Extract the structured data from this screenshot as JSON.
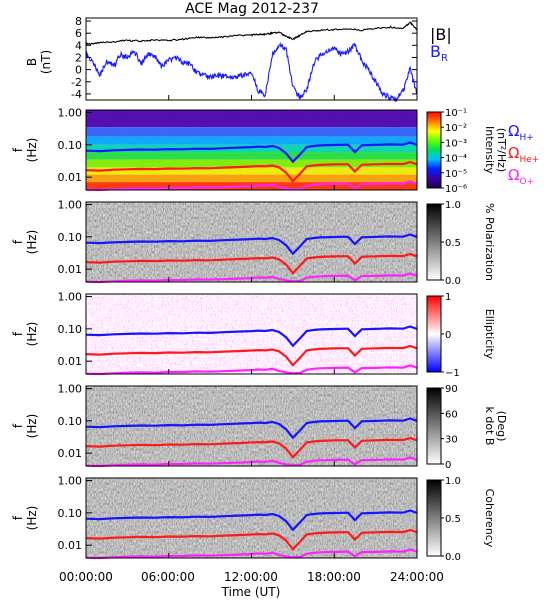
{
  "title": "ACE Mag 2012-237",
  "xlabel": "Time (UT)",
  "xticks": [
    "00:00:00",
    "06:00:00",
    "12:00:00",
    "18:00:00",
    "24:00:00"
  ],
  "colors": {
    "B": "#000000",
    "BR": "#1a1aff",
    "H": "#1515ff",
    "He": "#ff1a1a",
    "O": "#ff22ff"
  },
  "chart_data": [
    {
      "type": "line",
      "panel": "B",
      "ylabel": "B",
      "yunit": "(nT)",
      "ylim": [
        -5,
        8.5
      ],
      "yticks": [
        "8",
        "6",
        "4",
        "2",
        "0",
        "-2",
        "-4"
      ],
      "xlim_hours": [
        0,
        24
      ],
      "legend": [
        {
          "label": "|B|"
        },
        {
          "label": "B",
          "sub": "R"
        }
      ],
      "series": [
        {
          "name": "|B|",
          "color": "#000000",
          "x": [
            0,
            0.5,
            1,
            2,
            3,
            4,
            5,
            6,
            7,
            8,
            9,
            10,
            11,
            12,
            12.5,
            13,
            13.5,
            14,
            14.5,
            15,
            15.5,
            16,
            17,
            18,
            19,
            20,
            21,
            22,
            23,
            23.5,
            24
          ],
          "y": [
            4.3,
            4.2,
            4.5,
            4.6,
            4.8,
            4.7,
            4.9,
            4.8,
            5.0,
            5.3,
            5.2,
            5.4,
            5.6,
            5.7,
            5.8,
            5.8,
            6.0,
            6.1,
            5.5,
            5.0,
            5.6,
            6.3,
            6.5,
            6.6,
            6.7,
            6.5,
            6.8,
            7.0,
            6.8,
            7.8,
            6.5
          ]
        },
        {
          "name": "BR",
          "color": "#1a1aff",
          "x": [
            0,
            0.5,
            1,
            1.5,
            2,
            2.5,
            3,
            3.5,
            4,
            4.5,
            5,
            5.5,
            6,
            6.5,
            7,
            7.5,
            8,
            8.5,
            9,
            9.5,
            10,
            10.5,
            11,
            11.5,
            12,
            12.5,
            13,
            13.5,
            14,
            14.5,
            15,
            15.5,
            16,
            16.5,
            17,
            17.5,
            18,
            18.5,
            19,
            19.5,
            20,
            20.5,
            21,
            21.5,
            22,
            22.5,
            23,
            23.5,
            24
          ],
          "y": [
            2.8,
            1.0,
            -0.8,
            1.5,
            0.5,
            2.5,
            2.0,
            3.0,
            1.0,
            2.5,
            2.0,
            0.5,
            1.5,
            2.0,
            1.2,
            1.0,
            -0.5,
            -1.0,
            -1.2,
            -1.0,
            -1.1,
            -1.2,
            -1.0,
            -0.8,
            -0.5,
            -3.5,
            -4.2,
            2.5,
            4.0,
            3.5,
            -3.0,
            -4.5,
            -3.5,
            1.0,
            2.5,
            3.0,
            3.5,
            2.5,
            3.0,
            4.0,
            1.5,
            0.0,
            -2.0,
            -4.0,
            -4.5,
            -4.8,
            -3.5,
            0.0,
            -4.0
          ]
        }
      ]
    },
    {
      "type": "heatmap",
      "panel": "intensity",
      "ylabel": "f",
      "yunit": "(Hz)",
      "yscale": "log",
      "ylim": [
        0.004,
        1.2
      ],
      "yticks": [
        "1.00",
        "0.10",
        "0.01"
      ],
      "colorbar": {
        "label": "Intensity",
        "unit": "(nT²/Hz)",
        "ticks": [
          "10⁻¹",
          "10⁻²",
          "10⁻³",
          "10⁻⁴",
          "10⁻⁵",
          "10⁻⁶"
        ],
        "scale": "rainbow"
      },
      "legend": [
        {
          "label": "Ω",
          "sub": "H+",
          "color": "#1515ff"
        },
        {
          "label": "Ω",
          "sub": "He+",
          "color": "#ff1a1a"
        },
        {
          "label": "Ω",
          "sub": "O+",
          "color": "#ff22ff"
        }
      ]
    },
    {
      "type": "heatmap",
      "panel": "polarization",
      "ylabel": "f",
      "yunit": "(Hz)",
      "yscale": "log",
      "ylim": [
        0.004,
        1.2
      ],
      "yticks": [
        "1.00",
        "0.10",
        "0.01"
      ],
      "colorbar": {
        "label": "% Polarization",
        "ticks": [
          "1.0",
          "0.5",
          "0.0"
        ],
        "scale": "gray"
      }
    },
    {
      "type": "heatmap",
      "panel": "ellipticity",
      "ylabel": "f",
      "yunit": "(Hz)",
      "yscale": "log",
      "ylim": [
        0.004,
        1.2
      ],
      "yticks": [
        "1.00",
        "0.10",
        "0.01"
      ],
      "colorbar": {
        "label": "Ellipticity",
        "ticks": [
          "1",
          "0",
          "−1"
        ],
        "scale": "bwr"
      }
    },
    {
      "type": "heatmap",
      "panel": "kdotb",
      "ylabel": "f",
      "yunit": "(Hz)",
      "yscale": "log",
      "ylim": [
        0.004,
        1.2
      ],
      "yticks": [
        "1.00",
        "0.10",
        "0.01"
      ],
      "colorbar": {
        "label": "k dot B",
        "unit": "(Deg)",
        "ticks": [
          "90",
          "60",
          "30",
          "0"
        ],
        "scale": "gray"
      }
    },
    {
      "type": "heatmap",
      "panel": "coherency",
      "ylabel": "f",
      "yunit": "(Hz)",
      "yscale": "log",
      "ylim": [
        0.004,
        1.2
      ],
      "yticks": [
        "1.00",
        "0.10",
        "0.01"
      ],
      "colorbar": {
        "label": "Coherency",
        "ticks": [
          "1.0",
          "0.5",
          "0.0"
        ],
        "scale": "gray"
      }
    }
  ],
  "gyro_lines_hz": {
    "x_hours": [
      0,
      1,
      2,
      3,
      4,
      5,
      6,
      7,
      8,
      9,
      10,
      11,
      12,
      12.5,
      13,
      13.5,
      14,
      14.5,
      15,
      15.5,
      16,
      16.5,
      17,
      18,
      19,
      19.5,
      20,
      21,
      22,
      23,
      23.5,
      24
    ],
    "H": [
      0.066,
      0.064,
      0.068,
      0.07,
      0.072,
      0.071,
      0.074,
      0.073,
      0.076,
      0.075,
      0.079,
      0.082,
      0.085,
      0.088,
      0.086,
      0.092,
      0.08,
      0.055,
      0.03,
      0.05,
      0.086,
      0.092,
      0.096,
      0.099,
      0.101,
      0.06,
      0.097,
      0.1,
      0.103,
      0.101,
      0.118,
      0.1
    ],
    "He": [
      0.0165,
      0.016,
      0.017,
      0.0175,
      0.018,
      0.0178,
      0.0185,
      0.0183,
      0.019,
      0.0188,
      0.0198,
      0.0205,
      0.0213,
      0.022,
      0.0215,
      0.023,
      0.02,
      0.0138,
      0.0075,
      0.0125,
      0.0215,
      0.023,
      0.024,
      0.0248,
      0.0252,
      0.015,
      0.0242,
      0.025,
      0.0258,
      0.0253,
      0.0295,
      0.025
    ],
    "O": [
      0.0041,
      0.004,
      0.0042,
      0.0044,
      0.0045,
      0.0044,
      0.0046,
      0.0046,
      0.0048,
      0.0047,
      0.0049,
      0.0051,
      0.0053,
      0.0055,
      0.0054,
      0.0058,
      0.005,
      0.0045,
      0.0042,
      0.0043,
      0.0054,
      0.0058,
      0.006,
      0.0062,
      0.0063,
      0.0045,
      0.0061,
      0.0062,
      0.0064,
      0.0063,
      0.0074,
      0.0062
    ]
  }
}
